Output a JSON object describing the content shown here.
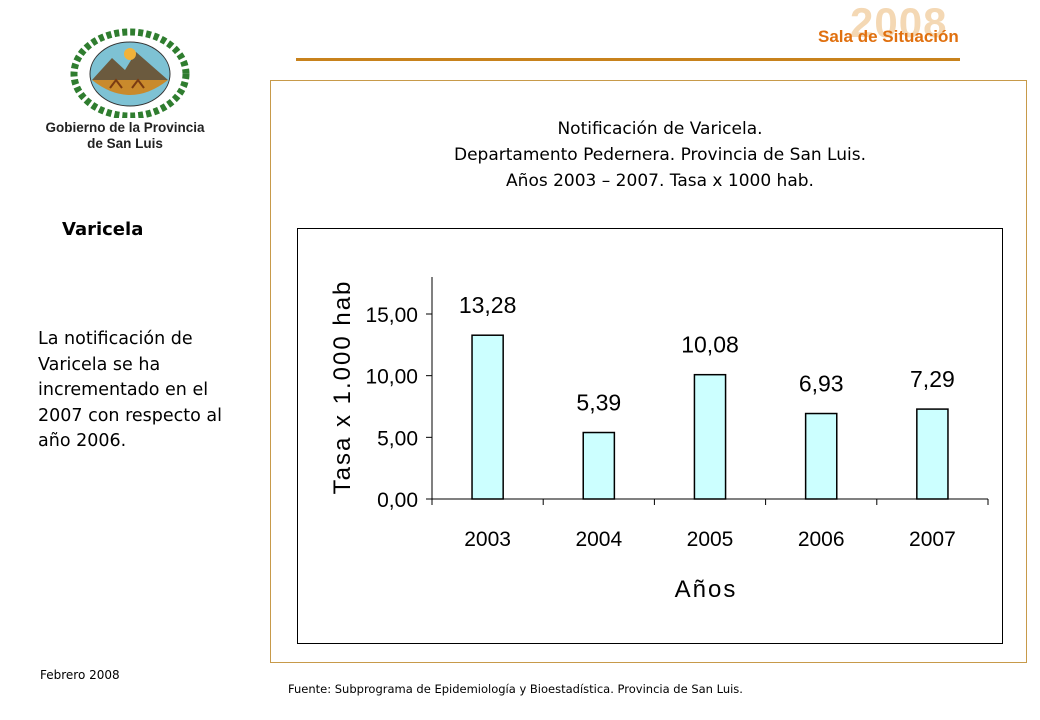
{
  "header": {
    "org_line1": "Gobierno de la Provincia",
    "org_line2": "de San Luis",
    "brand_year": "2008",
    "brand_text": "Sala de Situación"
  },
  "sidebar": {
    "section_title": "Varicela",
    "summary": "La notificación de Varicela se ha incrementado en el 2007 con respecto al año 2006."
  },
  "footer": {
    "date": "Febrero 2008",
    "source": "Fuente: Subprograma de Epidemiología y Bioestadística. Provincia de San Luis."
  },
  "colors": {
    "bar_fill": "#ccffff",
    "brand_orange": "#e0700f",
    "rule_brown": "#c8821c"
  },
  "chart_data": {
    "type": "bar",
    "title_lines": [
      "Notificación de Varicela.",
      "Departamento Pedernera. Provincia de San Luis.",
      "Años 2003 – 2007. Tasa x 1000 hab."
    ],
    "categories": [
      "2003",
      "2004",
      "2005",
      "2006",
      "2007"
    ],
    "values": [
      13.28,
      5.39,
      10.08,
      6.93,
      7.29
    ],
    "value_labels": [
      "13,28",
      "5,39",
      "10,08",
      "6,93",
      "7,29"
    ],
    "xlabel": "Años",
    "ylabel": "Tasa x 1.000 hab",
    "ylim": [
      0,
      18
    ],
    "yticks": [
      0,
      5,
      10,
      15
    ],
    "ytick_labels": [
      "0,00",
      "5,00",
      "10,00",
      "15,00"
    ],
    "grid": false,
    "legend": "none"
  }
}
